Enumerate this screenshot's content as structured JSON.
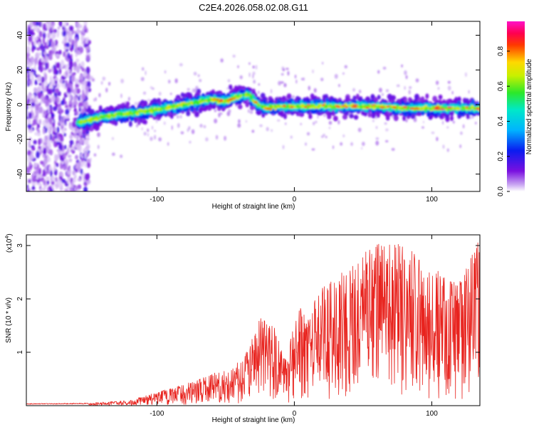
{
  "figure": {
    "title": "C2E4.2026.058.02.08.G11"
  },
  "chart_data": [
    {
      "type": "heatmap",
      "title": "C2E4.2026.058.02.08.G11",
      "xlabel": "Height of straight line (km)",
      "ylabel": "Frequency (Hz)",
      "xlim": [
        -195,
        135
      ],
      "ylim": [
        -50,
        48
      ],
      "xticks": [
        -100,
        0,
        100
      ],
      "xtick_labels": [
        "-100",
        "0",
        "100"
      ],
      "yticks": [
        -40,
        -20,
        0,
        20,
        40
      ],
      "ytick_labels": [
        "-40",
        "-20",
        "0",
        "20",
        "40"
      ],
      "colorbar": {
        "label": "Normalized spectral amplitude",
        "range": [
          0,
          0.97
        ],
        "ticks": [
          0.0,
          0.2,
          0.4,
          0.6,
          0.8
        ],
        "tick_labels": [
          "0.0",
          "0.2",
          "0.4",
          "0.6",
          "0.8"
        ],
        "colormap": "rainbow (white-violet-blue-cyan-green-yellow-red-magenta)"
      },
      "ridge": {
        "description": "frequency ridge center",
        "x": [
          -155,
          -140,
          -120,
          -100,
          -80,
          -60,
          -50,
          -40,
          -33,
          -27,
          -20,
          -10,
          0,
          20,
          40,
          60,
          80,
          100,
          120,
          135
        ],
        "y": [
          -10,
          -7,
          -5,
          -3,
          0,
          3,
          2,
          5,
          6,
          0,
          -2,
          -1,
          -1,
          -1,
          -1,
          -1,
          -2,
          -2,
          -2,
          -2
        ]
      },
      "noise_region": {
        "x": [
          -195,
          -155
        ]
      },
      "grid": false,
      "legend": "none"
    },
    {
      "type": "line",
      "xlabel": "Height of straight line (km)",
      "ylabel": "SNR (10 * v/v)",
      "y_scale_label": "(x10",
      "y_scale_exponent": "4",
      "y_scale_suffix": ")",
      "xlim": [
        -195,
        135
      ],
      "ylim": [
        0,
        3.2
      ],
      "xticks": [
        -100,
        0,
        100
      ],
      "xtick_labels": [
        "-100",
        "0",
        "100"
      ],
      "yticks": [
        1,
        2,
        3
      ],
      "ytick_labels": [
        "1",
        "2",
        "3"
      ],
      "color": "#e8231e",
      "envelope": {
        "x": [
          -195,
          -150,
          -120,
          -100,
          -80,
          -60,
          -45,
          -35,
          -25,
          -15,
          -5,
          0,
          10,
          30,
          50,
          65,
          80,
          100,
          120,
          135
        ],
        "y": [
          0.04,
          0.05,
          0.1,
          0.25,
          0.4,
          0.6,
          0.7,
          1.0,
          1.65,
          1.5,
          0.8,
          1.8,
          2.0,
          2.4,
          2.85,
          3.15,
          3.0,
          2.6,
          2.3,
          3.15
        ]
      },
      "grid": false,
      "legend": "none"
    }
  ]
}
